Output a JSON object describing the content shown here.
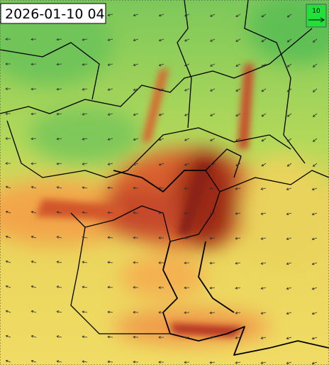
{
  "timestamp": "2026-01-10 04",
  "legend": {
    "label": "10"
  }
}
